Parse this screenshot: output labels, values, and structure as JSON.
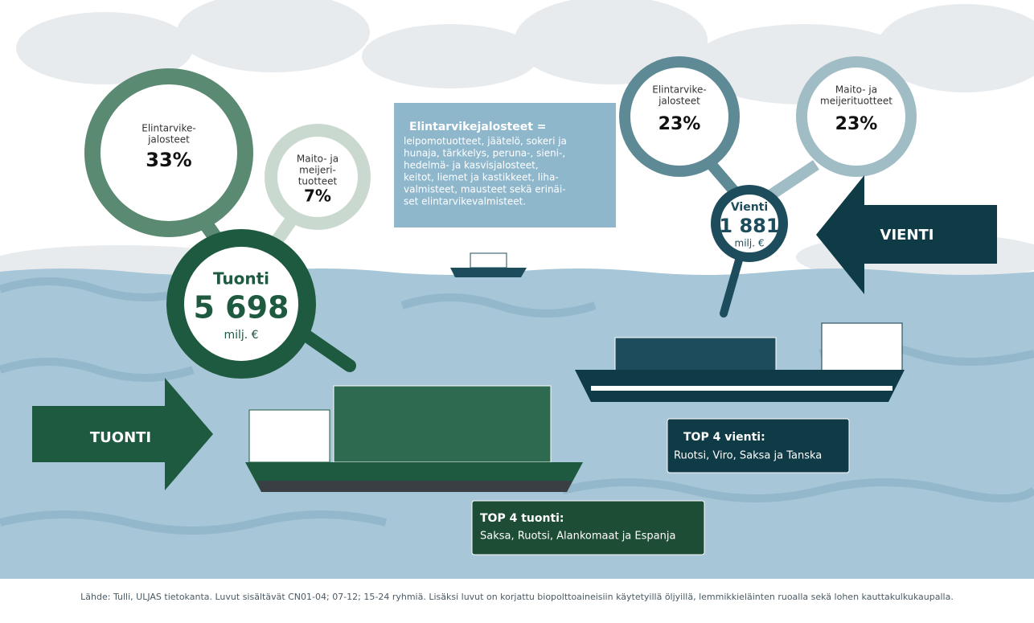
{
  "import": {
    "arrow": "TUONTI",
    "title": "Tuonti",
    "value": "5 698",
    "unit": "milj. €",
    "groups": [
      {
        "label": [
          "Elintarvike-",
          "jalosteet"
        ],
        "share": "33%"
      },
      {
        "label": [
          "Maito- ja",
          "meijeri-",
          "tuotteet"
        ],
        "share": "7%"
      }
    ],
    "top": {
      "title": "TOP 4 tuonti:",
      "text": "Saksa, Ruotsi, Alankomaat  ja Espanja"
    }
  },
  "export": {
    "arrow": "VIENTI",
    "title": "Vienti",
    "value": "1 881",
    "unit": "milj. €",
    "groups": [
      {
        "label": [
          "Elintarvike-",
          "jalosteet"
        ],
        "share": "23%"
      },
      {
        "label": [
          "Maito- ja",
          "meijerituotteet"
        ],
        "share": "23%"
      }
    ],
    "top": {
      "title": "TOP 4 vienti:",
      "text": "Ruotsi, Viro, Saksa ja Tanska"
    }
  },
  "info": {
    "title": "Elintarvikejalosteet =",
    "lines": [
      "leipomotuotteet, jäätelö, sokeri ja",
      "hunaja, tärkkelys, peruna-, sieni-,",
      "hedelmä- ja kasvisjalosteet,",
      "keitot, liemet ja kastikkeet, liha-",
      "valmisteet, mausteet sekä erinäi-",
      "set elintarvikevalmisteet."
    ]
  },
  "footnote": "Lähde: Tulli, ULJAS tietokanta. Luvut sisältävät CN01-04; 07-12; 15-24 ryhmiä. Lisäksi luvut on korjattu biopolttoaineisiin käytetyillä öljyillä, lemmikkieläinten ruoalla sekä lohen kauttakulkukaupalla."
}
